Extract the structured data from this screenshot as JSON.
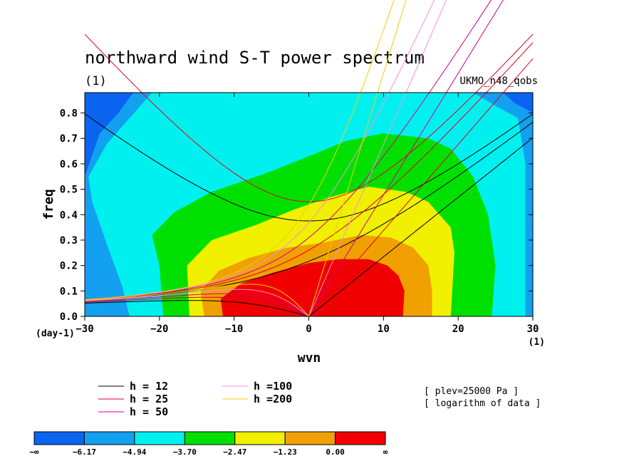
{
  "chart_data": {
    "type": "contour",
    "title": "northward wind S-T power spectrum",
    "subtitle": "(1)",
    "source_label": "UKMO_n48_qobs",
    "xlabel": "wvn",
    "ylabel": "freq",
    "x_unit": "(1)",
    "y_unit": "(day-1)",
    "xlim": [
      -30,
      30
    ],
    "ylim": [
      0,
      0.88
    ],
    "x_ticks": [
      -30,
      -20,
      -10,
      0,
      10,
      20,
      30
    ],
    "x_tick_labels": [
      "−30",
      "−20",
      "−10",
      "0",
      "10",
      "20",
      "30"
    ],
    "y_ticks": [
      0.0,
      0.1,
      0.2,
      0.3,
      0.4,
      0.5,
      0.6,
      0.7,
      0.8
    ],
    "y_tick_labels": [
      "0.0",
      "0.1",
      "0.2",
      "0.3",
      "0.4",
      "0.5",
      "0.6",
      "0.7",
      "0.8"
    ],
    "colorbar": {
      "boundaries": [
        "−∞",
        "−6.17",
        "−4.94",
        "−3.70",
        "−2.47",
        "−1.23",
        "0.00",
        "∞"
      ],
      "colors": [
        "#0a64f0",
        "#14a0f0",
        "#00f0f0",
        "#00e000",
        "#f0f000",
        "#f0a000",
        "#f00000"
      ]
    },
    "contour_levels": [
      -6.17,
      -4.94,
      -3.7,
      -2.47,
      -1.23,
      0.0
    ],
    "dispersion_curves": [
      {
        "label": "h = 12",
        "h": 12,
        "color": "#000000"
      },
      {
        "label": "h = 25",
        "h": 25,
        "color": "#e00020"
      },
      {
        "label": "h = 50",
        "h": 50,
        "color": "#d0008c"
      },
      {
        "label": "h =100",
        "h": 100,
        "color": "#f090e0"
      },
      {
        "label": "h =200",
        "h": 200,
        "color": "#f0d000"
      }
    ],
    "annotations": [
      "[ plev=25000 Pa ]",
      "[ logarithm of data ]"
    ]
  }
}
